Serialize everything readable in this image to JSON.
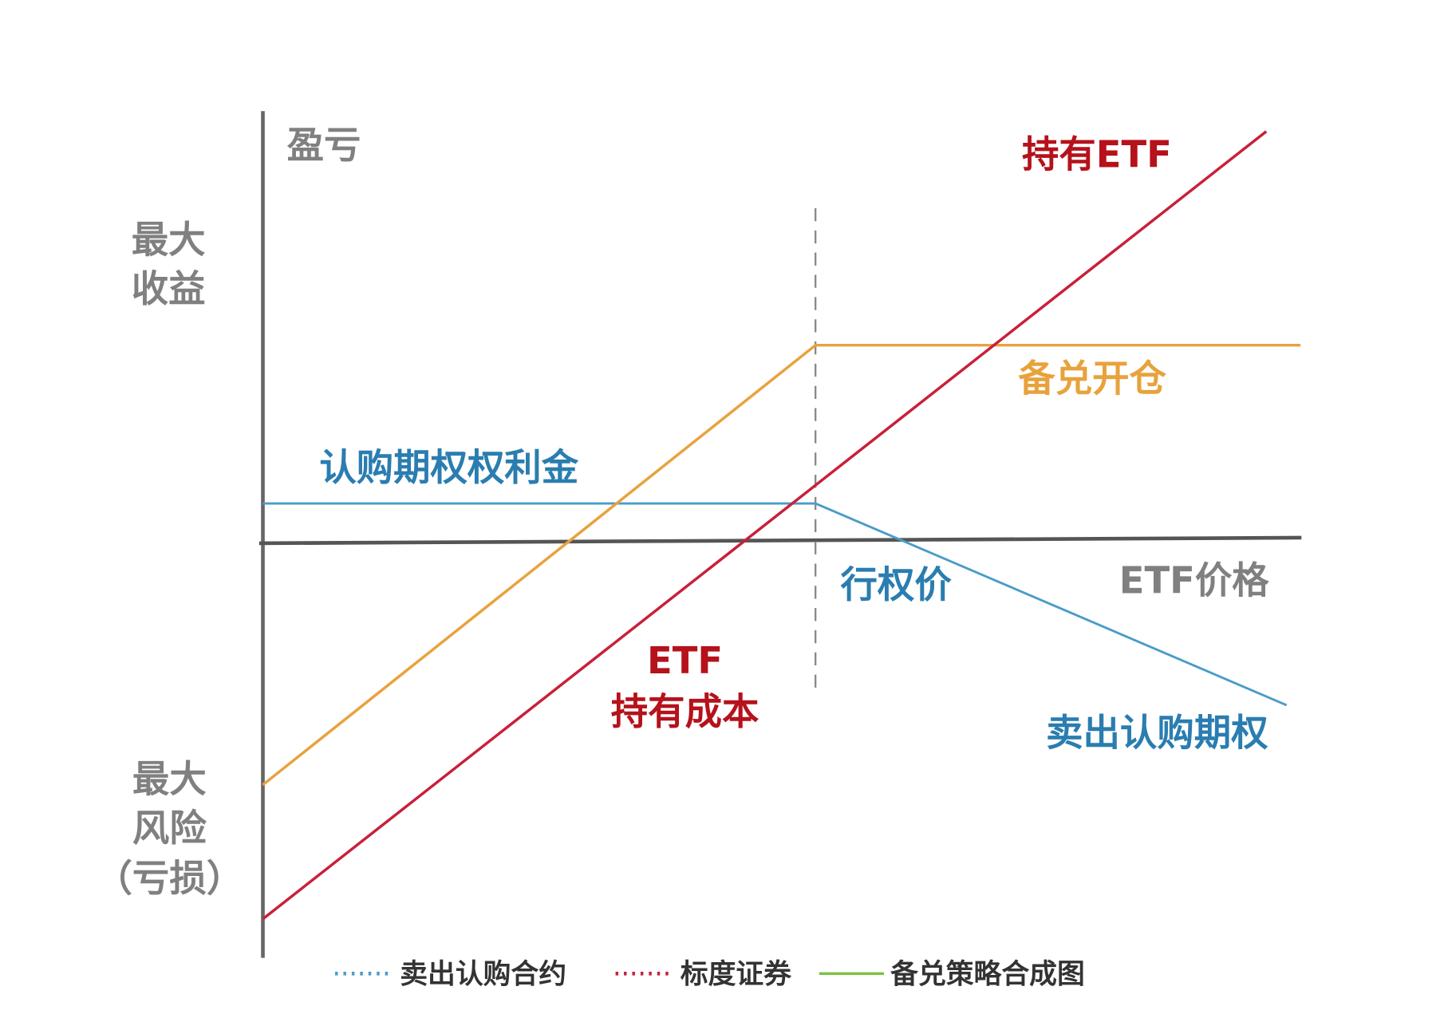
{
  "axes": {
    "y_label": "盈亏",
    "x_label": "ETF价格"
  },
  "left_labels": {
    "max_gain": [
      "最大",
      "收益"
    ],
    "max_risk": [
      "最大",
      "风险",
      "（亏损）"
    ]
  },
  "annotations": {
    "hold_etf": "持有ETF",
    "covered_open": "备兑开仓",
    "call_premium": "认购期权权利金",
    "strike_price": "行权价",
    "etf_cost": [
      "ETF",
      "持有成本"
    ],
    "sell_call": "卖出认购期权"
  },
  "legend": [
    "卖出认购合约",
    "标度证券",
    "备兑策略合成图"
  ]
}
